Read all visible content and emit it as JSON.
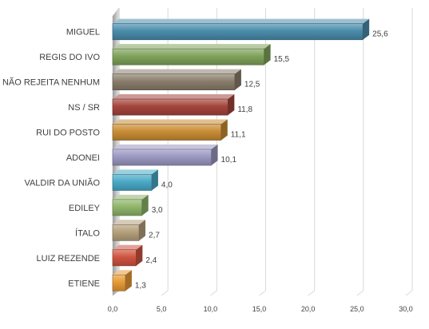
{
  "chart_data": {
    "type": "bar",
    "orientation": "horizontal",
    "categories": [
      "MIGUEL",
      "REGIS DO IVO",
      "NÃO REJEITA NENHUM",
      "NS / SR",
      "RUI DO POSTO",
      "ADONEI",
      "VALDIR DA UNIÃO",
      "EDILEY",
      "ÍTALO",
      "LUIZ REZENDE",
      "ETIENE"
    ],
    "values": [
      25.6,
      15.5,
      12.5,
      11.8,
      11.1,
      10.1,
      4.0,
      3.0,
      2.7,
      2.4,
      1.3
    ],
    "value_labels": [
      "25,6",
      "15,5",
      "12,5",
      "11,8",
      "11,1",
      "10,1",
      "4,0",
      "3,0",
      "2,7",
      "2,4",
      "1,3"
    ],
    "colors": [
      "#4a8cab",
      "#7fa35a",
      "#8a7d6b",
      "#a4453c",
      "#c98d35",
      "#9b98c2",
      "#4aa9c7",
      "#8fb56a",
      "#b5a07c",
      "#cf5440",
      "#e79a35"
    ],
    "xlim": [
      0,
      30
    ],
    "xticks": [
      0,
      5,
      10,
      15,
      20,
      25,
      30
    ],
    "xtick_labels": [
      "0,0",
      "5,0",
      "10,0",
      "15,0",
      "20,0",
      "25,0",
      "30,0"
    ],
    "title": "",
    "xlabel": "",
    "ylabel": "",
    "grid": true,
    "legend": "none"
  }
}
